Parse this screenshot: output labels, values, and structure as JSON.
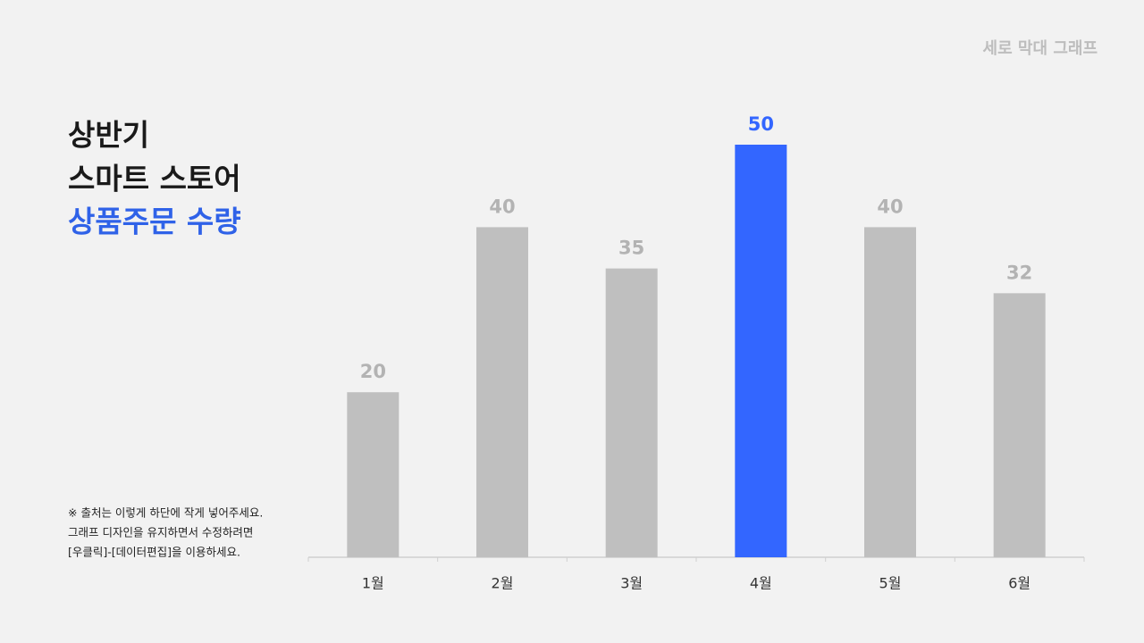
{
  "chart_data": {
    "type": "bar",
    "label": "세로 막대 그래프",
    "title_lines": [
      "상반기",
      "스마트 스토어",
      "상품주문 수량"
    ],
    "note_lines": [
      "※ 출처는 이렇게 하단에 작게 넣어주세요.",
      "그래프 디자인을 유지하면서 수정하려면",
      "[우클릭]-[데이터편집]을 이용하세요."
    ],
    "categories": [
      "1월",
      "2월",
      "3월",
      "4월",
      "5월",
      "6월"
    ],
    "values": [
      20,
      40,
      35,
      50,
      40,
      32
    ],
    "colors": [
      "#bfbfbf",
      "#bfbfbf",
      "#bfbfbf",
      "#3366ff",
      "#bfbfbf",
      "#bfbfbf"
    ],
    "ylim": [
      0,
      50
    ],
    "grid": false
  }
}
